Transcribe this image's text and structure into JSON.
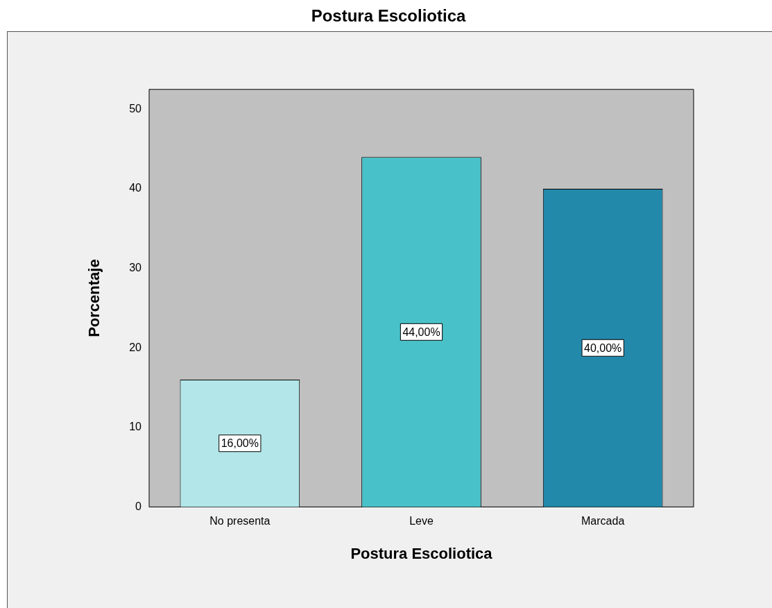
{
  "chart_data": {
    "type": "bar",
    "title": "Postura Escoliotica",
    "xlabel": "Postura Escoliotica",
    "ylabel": "Porcentaje",
    "categories": [
      "No presenta",
      "Leve",
      "Marcada"
    ],
    "values": [
      16,
      44,
      40
    ],
    "colors": [
      "#b3e6e8",
      "#49c1c8",
      "#2389ab"
    ],
    "value_labels": [
      "16,00%",
      "44,00%",
      "40,00%"
    ],
    "ylim": [
      0,
      52.5
    ],
    "yticks": [
      0,
      10,
      20,
      30,
      40,
      50
    ],
    "grid": false,
    "legend": false
  }
}
